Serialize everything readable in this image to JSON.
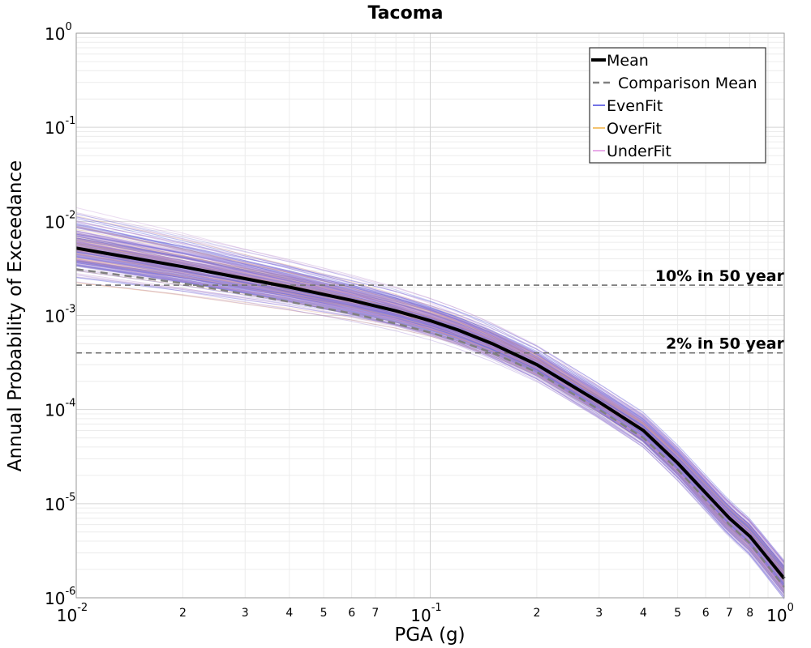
{
  "chart_data": {
    "type": "line",
    "title": "Tacoma",
    "xlabel": "PGA (g)",
    "ylabel": "Annual Probability of Exceedance",
    "xscale": "log",
    "yscale": "log",
    "xlim": [
      0.01,
      1
    ],
    "ylim": [
      1e-06,
      1
    ],
    "grid": true,
    "legend_position": "top-right",
    "x_major_ticks": [
      {
        "base": "10",
        "exp": "-2",
        "value": 0.01
      },
      {
        "base": "10",
        "exp": "-1",
        "value": 0.1
      },
      {
        "base": "10",
        "exp": "0",
        "value": 1
      }
    ],
    "x_minor_ticks": [
      {
        "label": "2",
        "value": 0.02
      },
      {
        "label": "3",
        "value": 0.03
      },
      {
        "label": "4",
        "value": 0.04
      },
      {
        "label": "5",
        "value": 0.05
      },
      {
        "label": "6",
        "value": 0.06
      },
      {
        "label": "7",
        "value": 0.07
      },
      {
        "label": "2",
        "value": 0.2
      },
      {
        "label": "3",
        "value": 0.3
      },
      {
        "label": "4",
        "value": 0.4
      },
      {
        "label": "5",
        "value": 0.5
      },
      {
        "label": "6",
        "value": 0.6
      },
      {
        "label": "7",
        "value": 0.7
      },
      {
        "label": "8",
        "value": 0.8
      }
    ],
    "y_major_ticks": [
      {
        "base": "10",
        "exp": "0",
        "value": 1
      },
      {
        "base": "10",
        "exp": "-1",
        "value": 0.1
      },
      {
        "base": "10",
        "exp": "-2",
        "value": 0.01
      },
      {
        "base": "10",
        "exp": "-3",
        "value": 0.001
      },
      {
        "base": "10",
        "exp": "-4",
        "value": 0.0001
      },
      {
        "base": "10",
        "exp": "-5",
        "value": 1e-05
      },
      {
        "base": "10",
        "exp": "-6",
        "value": 1e-06
      }
    ],
    "reference_lines": [
      {
        "label": "10% in 50 year",
        "y": 0.0021
      },
      {
        "label": "2% in 50 year",
        "y": 0.0004
      }
    ],
    "series": [
      {
        "name": "Mean",
        "color": "#000000",
        "style": "solid-thick",
        "x": [
          0.01,
          0.02,
          0.04,
          0.06,
          0.08,
          0.1,
          0.12,
          0.15,
          0.2,
          0.3,
          0.4,
          0.5,
          0.6,
          0.7,
          0.8,
          1.0
        ],
        "y": [
          0.0052,
          0.0033,
          0.002,
          0.00145,
          0.00112,
          0.00088,
          0.0007,
          0.0005,
          0.0003,
          0.00012,
          6e-05,
          2.7e-05,
          1.3e-05,
          7e-06,
          4.5e-06,
          1.6e-06
        ]
      },
      {
        "name": "Comparison Mean",
        "color": "#808080",
        "style": "dashed",
        "x": [
          0.01,
          0.02,
          0.04,
          0.06,
          0.08,
          0.1,
          0.12,
          0.15,
          0.2,
          0.3,
          0.4,
          0.5,
          0.6,
          0.7,
          0.8,
          1.0
        ],
        "y": [
          0.0031,
          0.0022,
          0.0014,
          0.00105,
          0.00082,
          0.00066,
          0.00054,
          0.0004,
          0.00025,
          0.0001,
          5e-05,
          2.3e-05,
          1.1e-05,
          6e-06,
          3.8e-06,
          1.3e-06
        ]
      },
      {
        "name": "EvenFit",
        "color": "#4444dd",
        "style": "thin-ensemble"
      },
      {
        "name": "OverFit",
        "color": "#f0b040",
        "style": "thin-ensemble"
      },
      {
        "name": "UnderFit",
        "color": "#e090e0",
        "style": "thin-ensemble"
      }
    ]
  }
}
